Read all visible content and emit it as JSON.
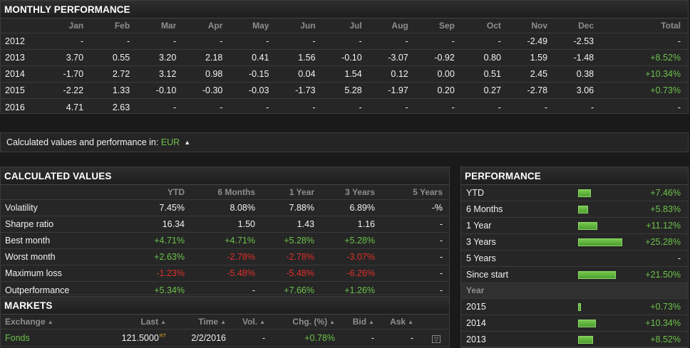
{
  "monthly": {
    "title": "MONTHLY PERFORMANCE",
    "headers": [
      "Jan",
      "Feb",
      "Mar",
      "Apr",
      "May",
      "Jun",
      "Jul",
      "Aug",
      "Sep",
      "Oct",
      "Nov",
      "Dec",
      "Total"
    ],
    "rows": [
      {
        "year": "2012",
        "values": [
          "-",
          "-",
          "-",
          "-",
          "-",
          "-",
          "-",
          "-",
          "-",
          "-",
          "-2.49",
          "-2.53"
        ],
        "total": "-"
      },
      {
        "year": "2013",
        "values": [
          "3.70",
          "0.55",
          "3.20",
          "2.18",
          "0.41",
          "1.56",
          "-0.10",
          "-3.07",
          "-0.92",
          "0.80",
          "1.59",
          "-1.48"
        ],
        "total": "+8.52%"
      },
      {
        "year": "2014",
        "values": [
          "-1.70",
          "2.72",
          "3.12",
          "0.98",
          "-0.15",
          "0.04",
          "1.54",
          "0.12",
          "0.00",
          "0.51",
          "2.45",
          "0.38"
        ],
        "total": "+10.34%"
      },
      {
        "year": "2015",
        "values": [
          "-2.22",
          "1.33",
          "-0.10",
          "-0.30",
          "-0.03",
          "-1.73",
          "5.28",
          "-1.97",
          "0.20",
          "0.27",
          "-2.78",
          "3.06"
        ],
        "total": "+0.73%"
      },
      {
        "year": "2016",
        "values": [
          "4.71",
          "2.63",
          "-",
          "-",
          "-",
          "-",
          "-",
          "-",
          "-",
          "-",
          "-",
          "-"
        ],
        "total": "-"
      }
    ]
  },
  "currency": {
    "label": "Calculated values and performance in:",
    "value": "EUR",
    "arrows": "▲▼"
  },
  "calculated": {
    "title": "CALCULATED VALUES",
    "headers": [
      "",
      "YTD",
      "6 Months",
      "1 Year",
      "3 Years",
      "5 Years"
    ],
    "rows": [
      {
        "label": "Volatility",
        "values": [
          "7.45%",
          "8.08%",
          "7.88%",
          "6.89%",
          "-%"
        ],
        "tone": [
          "",
          "",
          "",
          "",
          ""
        ]
      },
      {
        "label": "Sharpe ratio",
        "values": [
          "16.34",
          "1.50",
          "1.43",
          "1.16",
          "-"
        ],
        "tone": [
          "",
          "",
          "",
          "",
          ""
        ]
      },
      {
        "label": "Best month",
        "values": [
          "+4.71%",
          "+4.71%",
          "+5.28%",
          "+5.28%",
          "-"
        ],
        "tone": [
          "pos",
          "pos",
          "pos",
          "pos",
          ""
        ]
      },
      {
        "label": "Worst month",
        "values": [
          "+2.63%",
          "-2.78%",
          "-2.78%",
          "-3.07%",
          "-"
        ],
        "tone": [
          "pos",
          "neg",
          "neg",
          "neg",
          ""
        ]
      },
      {
        "label": "Maximum loss",
        "values": [
          "-1.23%",
          "-5.48%",
          "-5.48%",
          "-6.26%",
          "-"
        ],
        "tone": [
          "neg",
          "neg",
          "neg",
          "neg",
          ""
        ]
      },
      {
        "label": "Outperformance",
        "values": [
          "+5.34%",
          "-",
          "+7.66%",
          "+1.26%",
          "-"
        ],
        "tone": [
          "pos",
          "",
          "pos",
          "pos",
          ""
        ]
      }
    ]
  },
  "markets": {
    "title": "MARKETS",
    "headers": {
      "exchange": "Exchange",
      "last": "Last",
      "time": "Time",
      "vol": "Vol.",
      "chg": "Chg. (%)",
      "bid": "Bid",
      "ask": "Ask"
    },
    "sort_glyph": "▲▼",
    "row": {
      "exchange": "Fonds",
      "last": "121.5000",
      "rt": "RT",
      "time": "2/2/2016",
      "vol": "-",
      "chg": "+0.78%",
      "bid": "-",
      "ask": "-",
      "dropdown": "▽"
    }
  },
  "performance": {
    "title": "PERFORMANCE",
    "rows": [
      {
        "label": "YTD",
        "value": "+7.46%",
        "pct": 7.46
      },
      {
        "label": "6 Months",
        "value": "+5.83%",
        "pct": 5.83
      },
      {
        "label": "1 Year",
        "value": "+11.12%",
        "pct": 11.12
      },
      {
        "label": "3 Years",
        "value": "+25.28%",
        "pct": 25.28
      },
      {
        "label": "5 Years",
        "value": "-",
        "pct": 0
      },
      {
        "label": "Since start",
        "value": "+21.50%",
        "pct": 21.5
      }
    ],
    "year_header": "Year",
    "years": [
      {
        "label": "2015",
        "value": "+0.73%",
        "pct": 0.73
      },
      {
        "label": "2014",
        "value": "+10.34%",
        "pct": 10.34
      },
      {
        "label": "2013",
        "value": "+8.52%",
        "pct": 8.52
      }
    ],
    "bar_max_pct": 25.28
  },
  "colors": {
    "positive": "#6cc24a",
    "negative": "#e0302a",
    "accent": "#6cc24a"
  }
}
